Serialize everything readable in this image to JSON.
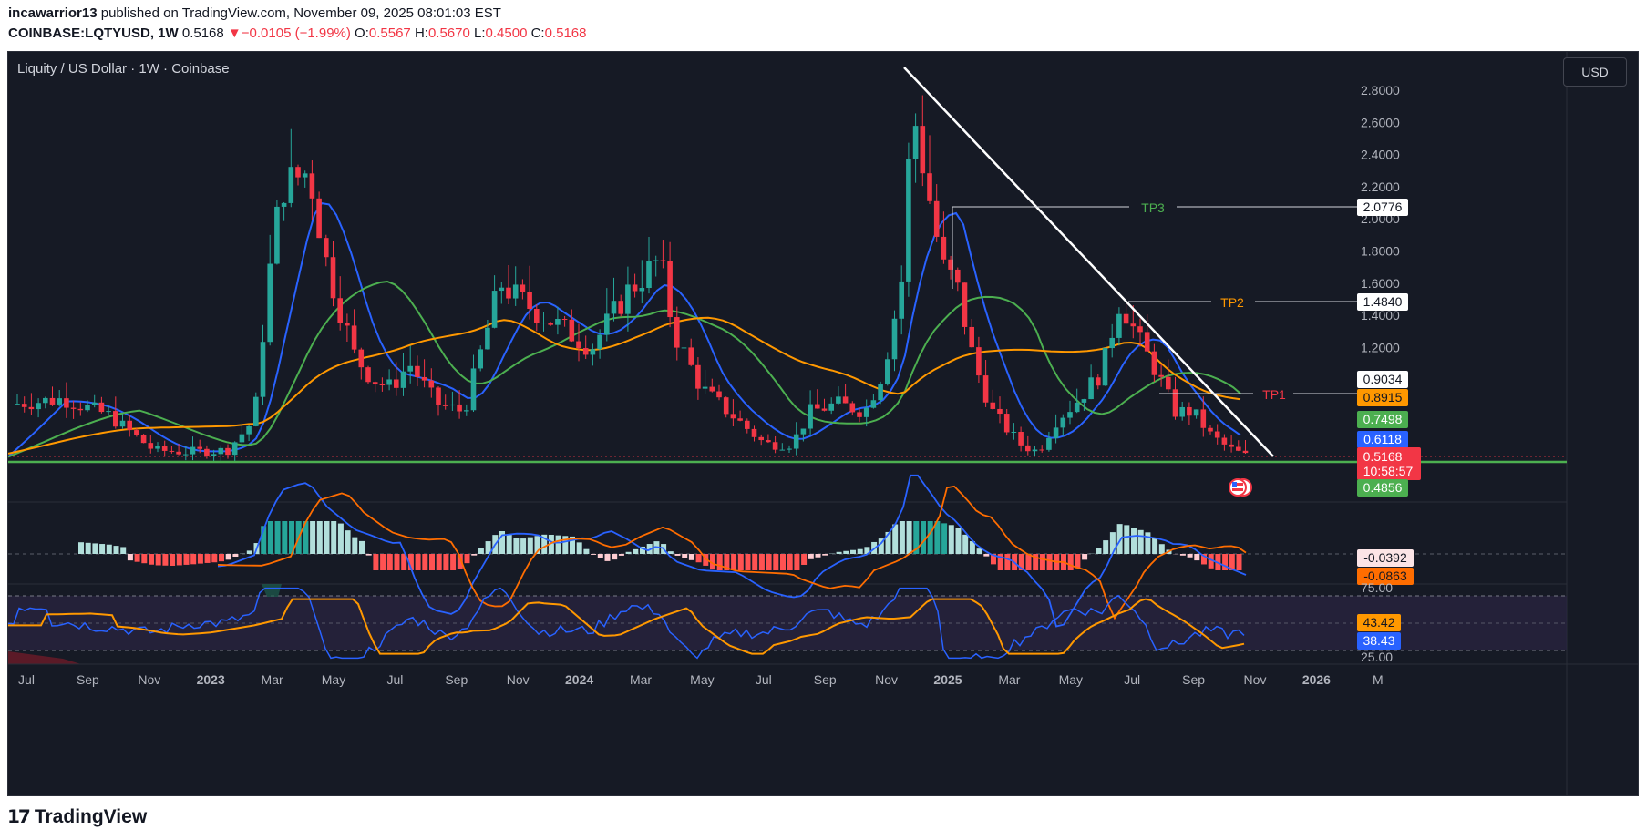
{
  "header": {
    "author": "incawarrior13",
    "published": "published on TradingView.com, November 09, 2025 08:01:03 EST",
    "symbol": "COINBASE:LQTYUSD, 1W",
    "last": "0.5168",
    "change_arrow": "▼",
    "change": "−0.0105 (−1.99%)",
    "o_label": "O:",
    "o_value": "0.5567",
    "h_label": "H:",
    "h_value": "0.5670",
    "l_label": "L:",
    "l_value": "0.4500",
    "c_label": "C:",
    "c_value": "0.5168"
  },
  "chart": {
    "title": "Liquity / US Dollar · 1W · Coinbase",
    "currency_button": "USD",
    "price_ticks": [
      "2.8000",
      "2.6000",
      "2.4000",
      "2.2000",
      "2.0000",
      "1.8000",
      "1.6000",
      "1.4000",
      "1.2000"
    ],
    "tp_labels": {
      "tp3": "TP3",
      "tp2": "TP2",
      "tp1": "TP1"
    },
    "price_badges": {
      "tp3": "2.0776",
      "tp2": "1.4840",
      "ma_a": "0.9034",
      "ma_b": "0.8915",
      "ma_c": "0.7498",
      "ma_d": "0.6118",
      "last": "0.5168",
      "countdown": "10:58:57",
      "support": "0.4856"
    },
    "macd_badges": {
      "a": "-0.0392",
      "b": "-0.0863"
    },
    "rsi_ticks": {
      "upper": "75.00",
      "lower": "25.00"
    },
    "rsi_badges": {
      "ma": "43.42",
      "rsi": "38.43"
    },
    "time_labels": [
      "Jul",
      "Sep",
      "Nov",
      "2023",
      "Mar",
      "May",
      "Jul",
      "Sep",
      "Nov",
      "2024",
      "Mar",
      "May",
      "Jul",
      "Sep",
      "Nov",
      "2025",
      "Mar",
      "May",
      "Jul",
      "Sep",
      "Nov",
      "2026",
      "M"
    ],
    "colors": {
      "bg": "#161a25",
      "up": "#26a69a",
      "down": "#f23645",
      "blue": "#2962ff",
      "orange": "#ff9800",
      "green": "#4caf50",
      "white": "#ffffff"
    }
  },
  "footer": {
    "brand": "TradingView"
  }
}
